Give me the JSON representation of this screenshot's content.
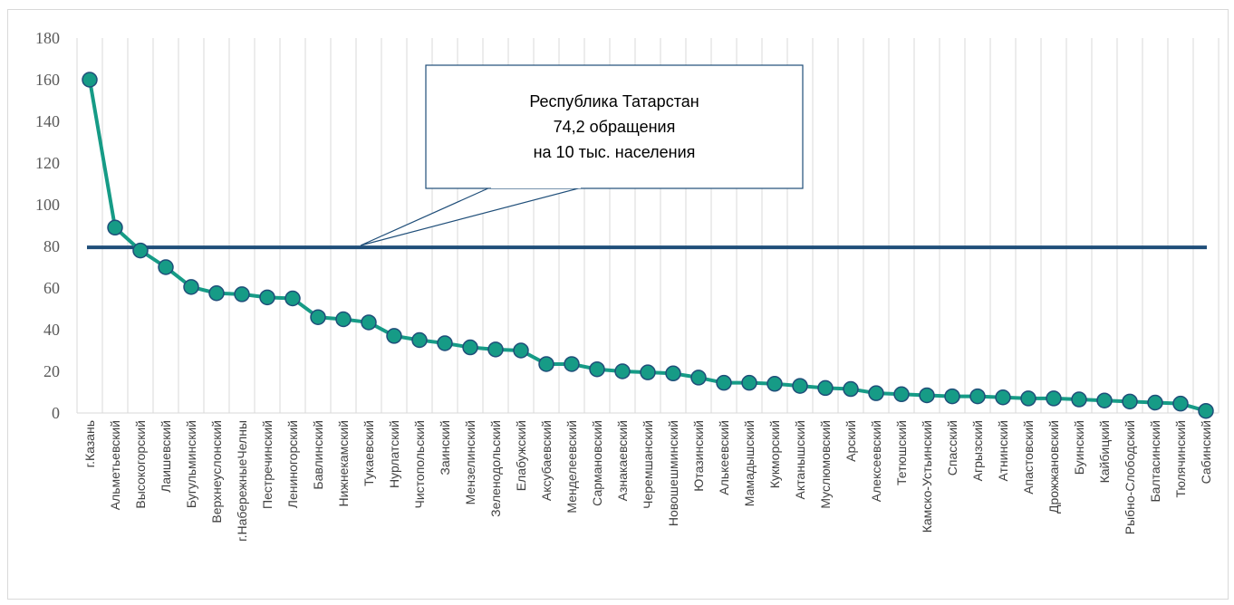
{
  "chart_data": {
    "type": "line",
    "categories": [
      "г.Казань",
      "Альметьевский",
      "Высокогорский",
      "Лаишевский",
      "Бугульминский",
      "Верхнеуслонский",
      "г.НабережныеЧелны",
      "Пестречинский",
      "Лениногорский",
      "Бавлинский",
      "Нижнекамский",
      "Тукаевский",
      "Нурлатский",
      "Чистопольский",
      "Заинский",
      "Мензелинский",
      "Зеленодольский",
      "Елабужский",
      "Аксубаевский",
      "Менделеевский",
      "Сармановский",
      "Азнакаевский",
      "Черемшанский",
      "Новошешминский",
      "Ютазинский",
      "Алькеевский",
      "Мамадышский",
      "Кукморский",
      "Актанышский",
      "Муслюмовский",
      "Арский",
      "Алексеевский",
      "Тетюшский",
      "Камско-Устьинский",
      "Спасский",
      "Агрызский",
      "Атнинский",
      "Апастовский",
      "Дрожжановский",
      "Буинский",
      "Кайбицкий",
      "Рыбно-Слободский",
      "Балтасинский",
      "Тюлячинский",
      "Сабинский"
    ],
    "series": [
      {
        "values": [
          160,
          89,
          78,
          70,
          60.5,
          57.5,
          57,
          55.5,
          55,
          46,
          45,
          43.5,
          37,
          35,
          33.5,
          31.5,
          30.5,
          30,
          23.5,
          23.5,
          21,
          20,
          19.5,
          19,
          17,
          14.5,
          14.5,
          14,
          13,
          12,
          11.5,
          9.5,
          9,
          8.5,
          8,
          8,
          7.5,
          7,
          7,
          6.5,
          6,
          5.5,
          5,
          4.5,
          1
        ],
        "color": "#169B86"
      }
    ],
    "reference_line": {
      "value": 79.5,
      "color": "#1F4E79"
    },
    "callout": {
      "lines": [
        "Республика Татарстан",
        "74,2 обращения",
        "на 10 тыс. населения"
      ]
    },
    "ylim": [
      0,
      180
    ],
    "yticks": [
      0,
      20,
      40,
      60,
      80,
      100,
      120,
      140,
      160,
      180
    ],
    "grid": "vertical",
    "title": "",
    "xlabel": "",
    "ylabel": ""
  }
}
